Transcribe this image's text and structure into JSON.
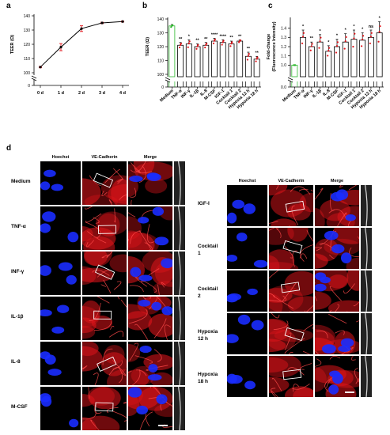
{
  "panels": {
    "a": "a",
    "b": "b",
    "c": "c",
    "d": "d"
  },
  "chart_data": [
    {
      "type": "line",
      "panel": "a",
      "categories": [
        "0 d",
        "1 d",
        "2 d",
        "3 d",
        "4 d"
      ],
      "values": [
        104,
        118,
        131,
        135,
        136
      ],
      "errors": [
        0.5,
        2.5,
        2,
        0.5,
        0.4
      ],
      "ylabel": "TEER (Ω)",
      "ylim": [
        100,
        140
      ],
      "yticks": [
        "100",
        "110",
        "120",
        "130",
        "140"
      ],
      "zero_tick": "0",
      "axis_break": true
    },
    {
      "type": "bar",
      "panel": "b",
      "categories": [
        "Medium",
        "TNF-α",
        "INF-γ",
        "IL-1β",
        "IL-8",
        "M-CSF",
        "IGF-1",
        "Cocktail 1",
        "Cocktail 2",
        "Hypoxia 12 h",
        "Hypoxia 18 h"
      ],
      "values": [
        135,
        121,
        122,
        120,
        121,
        124,
        123,
        122,
        124,
        113,
        111
      ],
      "errors": [
        1,
        2,
        3,
        2,
        2,
        2,
        2,
        2,
        1,
        3,
        2
      ],
      "significance": [
        "",
        "**",
        "*",
        "**",
        "**",
        "****",
        "****",
        "**",
        "**",
        "**",
        "**"
      ],
      "ylabel": "TEER (Ω)",
      "ylim": [
        100,
        140
      ],
      "yticks": [
        "100",
        "110",
        "120",
        "130",
        "140"
      ],
      "zero_tick": "0",
      "highlight": {
        "series": "Medium",
        "color": "#2eb82e"
      }
    },
    {
      "type": "bar",
      "panel": "c",
      "categories": [
        "Medium",
        "TNF-α",
        "INF-γ",
        "IL-1β",
        "IL-8",
        "M-CSF",
        "IGF-1",
        "Cocktail 1",
        "Cocktail 2",
        "Hypoxia 12 h",
        "Hypoxia 18 h"
      ],
      "values": [
        1.0,
        1.3,
        1.2,
        1.25,
        1.15,
        1.2,
        1.25,
        1.28,
        1.27,
        1.3,
        1.35
      ],
      "errors": [
        0,
        0.08,
        0.05,
        0.08,
        0.06,
        0.08,
        0.09,
        0.1,
        0.08,
        0.08,
        0.12
      ],
      "significance": [
        "",
        "*",
        "**",
        "*",
        "*",
        "*",
        "*",
        "*",
        "*",
        "ns",
        "*"
      ],
      "ylabel": "Fold-change\n(Fluorescence Intensity)",
      "ylim": [
        0.9,
        1.5
      ],
      "yticks": [
        "1.0",
        "1.1",
        "1.2",
        "1.3",
        "1.4"
      ],
      "zero_tick": "0.0",
      "highlight": {
        "series": "Medium",
        "color": "#2eb82e"
      }
    }
  ],
  "micrograph": {
    "headers": [
      "Hoechst",
      "VE-Cadherin",
      "Merge"
    ],
    "left_rows": [
      "Medium",
      "TNF-α",
      "INF-γ",
      "IL-1β",
      "IL-8",
      "M-CSF"
    ],
    "right_rows": [
      "IGF-I",
      "Cocktail\n1",
      "Cocktail\n2",
      "Hypoxia\n12 h",
      "Hypoxia\n18 h"
    ],
    "channel_colors": {
      "hoechst": "#1a2cff",
      "ve_cadherin": "#e0141a"
    }
  }
}
